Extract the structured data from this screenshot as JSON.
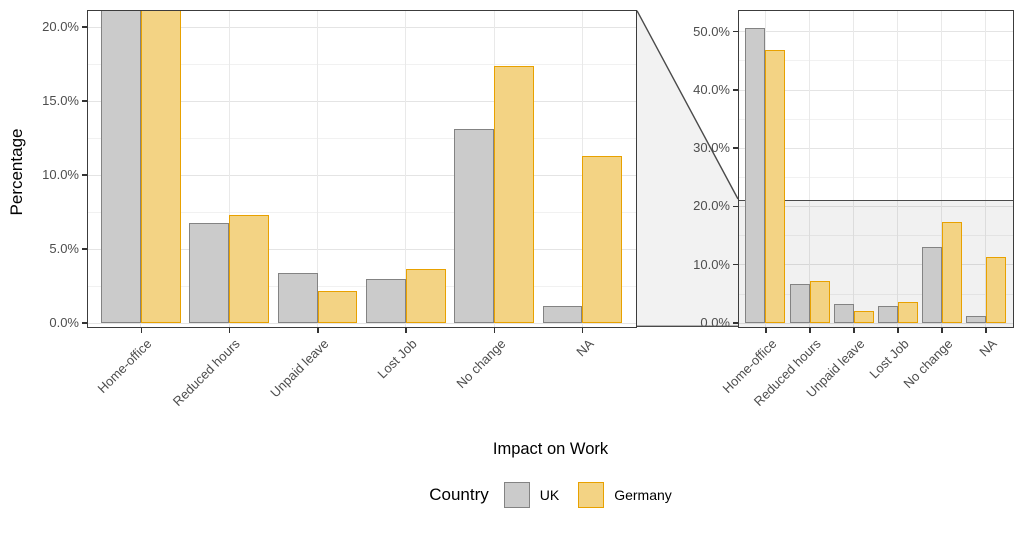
{
  "figure": {
    "y_axis_title": "Percentage",
    "x_axis_title": "Impact on Work"
  },
  "chart_data": {
    "type": "bar",
    "subtype": "grouped-bar-with-zoom-facet",
    "categories": [
      "Home-office",
      "Reduced hours",
      "Unpaid leave",
      "Lost Job",
      "No change",
      "NA"
    ],
    "series": [
      {
        "name": "UK",
        "fill": "#cbcbcb",
        "stroke": "#838383",
        "values": [
          50.7,
          6.8,
          3.4,
          3.0,
          13.1,
          1.2
        ]
      },
      {
        "name": "Germany",
        "fill": "#f3d384",
        "stroke": "#e8a100",
        "values": [
          46.9,
          7.3,
          2.2,
          3.7,
          17.4,
          11.3
        ]
      }
    ],
    "xlabel": "Impact on Work",
    "ylabel": "Percentage",
    "grid": "on",
    "legend_position": "bottom",
    "zoom_limit_pct": 21.1,
    "panels": [
      {
        "id": "zoom",
        "role": "zoomed-view",
        "ylim": [
          0,
          21.1
        ],
        "major_ticks": [
          0,
          5,
          10,
          15,
          20
        ],
        "minor_ticks": [
          2.5,
          7.5,
          12.5,
          17.5
        ],
        "tick_labels": [
          "0.0%",
          "5.0%",
          "10.0%",
          "15.0%",
          "20.0%"
        ]
      },
      {
        "id": "full",
        "role": "full-view",
        "ylim": [
          0,
          53.5
        ],
        "major_ticks": [
          0,
          10,
          20,
          30,
          40,
          50
        ],
        "minor_ticks": [
          5,
          15,
          25,
          35,
          45
        ],
        "tick_labels": [
          "0.0%",
          "10.0%",
          "20.0%",
          "30.0%",
          "40.0%",
          "50.0%"
        ]
      }
    ],
    "legend": {
      "title": "Country",
      "entries": [
        "UK",
        "Germany"
      ]
    }
  }
}
